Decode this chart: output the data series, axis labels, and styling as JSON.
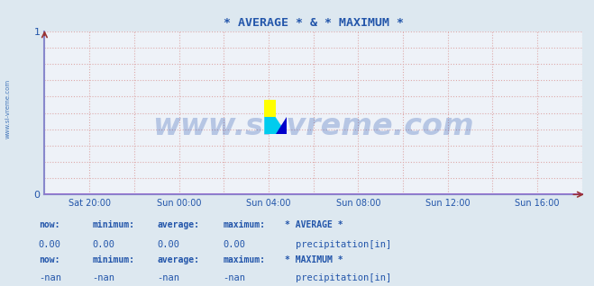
{
  "title": "* AVERAGE * & * MAXIMUM *",
  "title_color": "#2255aa",
  "bg_color": "#dde8f0",
  "plot_bg_color": "#eef2f8",
  "axis_color": "#8888cc",
  "arrow_color": "#993333",
  "grid_color": "#ddaaaa",
  "xlim_start": -6,
  "xlim_end": 18,
  "ylim": [
    0,
    1
  ],
  "yticks": [
    0,
    1
  ],
  "xtick_labels": [
    "Sat 20:00",
    "Sun 00:00",
    "Sun 04:00",
    "Sun 08:00",
    "Sun 12:00",
    "Sun 16:00"
  ],
  "xtick_positions": [
    -4,
    0,
    4,
    8,
    12,
    16
  ],
  "watermark": "www.si-vreme.com",
  "watermark_color": "#1144aa",
  "watermark_alpha": 0.25,
  "side_label": "www.si-vreme.com",
  "side_label_color": "#4477bb",
  "legend_row1_label": "* AVERAGE *",
  "legend_row2_label": "* MAXIMUM *",
  "legend_item": "precipitation[in]",
  "legend_color1": "#cc11cc",
  "legend_color2": "#aa00cc",
  "stats_labels": [
    "now:",
    "minimum:",
    "average:",
    "maximum:"
  ],
  "stats_row1": [
    "0.00",
    "0.00",
    "0.00",
    "0.00"
  ],
  "stats_row2": [
    "-nan",
    "-nan",
    "-nan",
    "-nan"
  ],
  "stats_color": "#2255aa",
  "stats_label_color": "#2255aa",
  "line_color": "#cc00cc"
}
